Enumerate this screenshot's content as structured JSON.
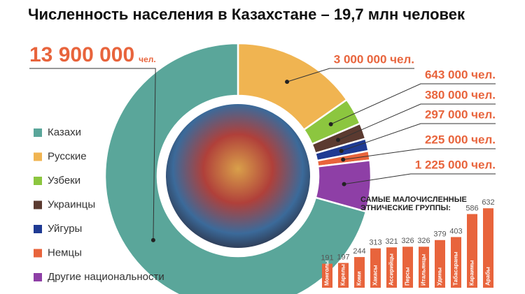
{
  "chart_data": [
    {
      "type": "donut",
      "title": "Численность населения в Казахстане – 19,7 млн человек",
      "series": [
        {
          "name": "Казахи",
          "color": "#5aa69a",
          "values": [
            13900000
          ],
          "value_labels": [
            "13 900 000"
          ]
        },
        {
          "name": "Русские",
          "color": "#f0b451",
          "values": [
            3000000
          ],
          "value_labels": [
            "3 000 000 чел."
          ]
        },
        {
          "name": "Узбеки",
          "color": "#8cc63f",
          "values": [
            643000
          ],
          "value_labels": [
            "643 000 чел."
          ]
        },
        {
          "name": "Украинцы",
          "color": "#5b3a30",
          "values": [
            380000
          ],
          "value_labels": [
            "380 000 чел."
          ]
        },
        {
          "name": "Уйгуры",
          "color": "#1f3a93",
          "values": [
            297000
          ],
          "value_labels": [
            "297 000 чел."
          ]
        },
        {
          "name": "Немцы",
          "color": "#e8643c",
          "values": [
            225000
          ],
          "value_labels": [
            "225 000 чел."
          ]
        },
        {
          "name": "Другие национальности",
          "color": "#8e3fa6",
          "values": [
            1225000
          ],
          "value_labels": [
            "1 225 000 чел."
          ]
        }
      ],
      "main_label_unit": "чел."
    },
    {
      "type": "bar",
      "title_lines": [
        "САМЫЕ МАЛОЧИСЛЕННЫЕ",
        "ЭТНИЧЕСКИЕ ГРУППЫ:"
      ],
      "categories": [
        "Монголы",
        "Карелы",
        "Коми",
        "Хакасы",
        "Ассирийцы",
        "Персы",
        "Итальянцы",
        "Удины",
        "Табасараны",
        "Караимы",
        "Арабы"
      ],
      "values": [
        191,
        197,
        244,
        313,
        321,
        326,
        326,
        379,
        403,
        586,
        632
      ],
      "color": "#e8643c"
    }
  ]
}
